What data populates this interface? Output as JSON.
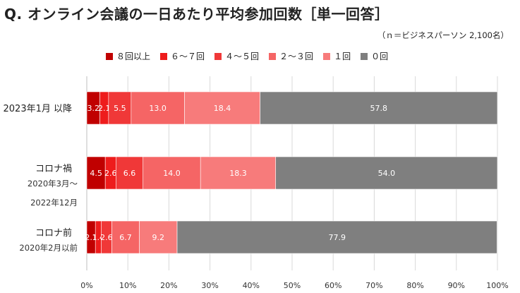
{
  "title": "Q. オンライン会議の一日あたり平均参加回数［単一回答］",
  "note": "（ｎ＝ビジネスパーソン 2,100名）",
  "chart_data": {
    "type": "bar",
    "orientation": "horizontal",
    "stacked": true,
    "xlim": [
      0,
      100
    ],
    "x_ticks": [
      "0%",
      "10%",
      "20%",
      "30%",
      "40%",
      "50%",
      "60%",
      "70%",
      "80%",
      "90%",
      "100%"
    ],
    "grid": true,
    "legend_position": "top",
    "categories": [
      {
        "label": "2023年1月 以降",
        "sublabel": ""
      },
      {
        "label": "コロナ禍",
        "sublabel": "2020年3月～\n2022年12月"
      },
      {
        "label": "コロナ前",
        "sublabel": "2020年2月以前"
      }
    ],
    "series": [
      {
        "name": "８回以上",
        "color": "#c00000",
        "values": [
          3.2,
          4.5,
          2.1
        ]
      },
      {
        "name": "６～７回",
        "color": "#ee1c1c",
        "values": [
          2.1,
          2.6,
          1.4
        ]
      },
      {
        "name": "４～５回",
        "color": "#f03838",
        "values": [
          5.5,
          6.6,
          2.6
        ]
      },
      {
        "name": "２～３回",
        "color": "#f56565",
        "values": [
          13.0,
          14.0,
          6.7
        ]
      },
      {
        "name": "１回",
        "color": "#f77b7b",
        "values": [
          18.4,
          18.3,
          9.2
        ]
      },
      {
        "name": "０回",
        "color": "#7f7f7f",
        "values": [
          57.8,
          54.0,
          77.9
        ]
      }
    ]
  }
}
